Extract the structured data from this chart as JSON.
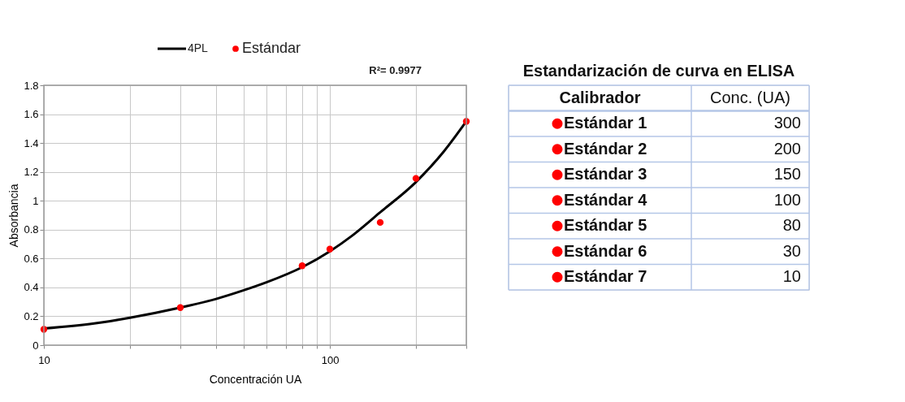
{
  "chart_data": [
    {
      "type": "scatter",
      "xlabel": "Concentración UA",
      "ylabel": "Absorbancia",
      "log": "x",
      "grid": true,
      "legend": "top",
      "xlim": [
        10,
        300
      ],
      "ylim": [
        0,
        1.8
      ],
      "xticks": [
        10,
        {
          "value": 20,
          "label": null
        },
        {
          "value": 30,
          "label": null
        },
        {
          "value": 40,
          "label": null
        },
        {
          "value": 50,
          "label": null
        },
        {
          "value": 60,
          "label": null
        },
        {
          "value": 70,
          "label": null
        },
        {
          "value": 80,
          "label": null
        },
        {
          "value": 90,
          "label": null
        },
        100,
        {
          "value": 200,
          "label": null
        },
        {
          "value": 300,
          "label": null
        }
      ],
      "yticks": [
        0,
        0.2,
        0.4,
        0.6,
        0.8,
        1,
        1.2,
        1.4,
        1.6,
        1.8
      ],
      "annotations": [
        "R²= 0.9977"
      ],
      "series": [
        {
          "name": "4PL",
          "type": "line",
          "color": "#000000",
          "x": [
            10,
            15,
            20,
            30,
            40,
            50,
            60,
            80,
            100,
            120,
            150,
            200,
            250,
            300
          ],
          "values": [
            0.115,
            0.15,
            0.19,
            0.26,
            0.32,
            0.38,
            0.435,
            0.54,
            0.65,
            0.76,
            0.92,
            1.13,
            1.34,
            1.55
          ]
        },
        {
          "name": "Estándar",
          "type": "scatter",
          "marker": "circle",
          "color": "#ff0000",
          "x": [
            10,
            30,
            80,
            100,
            150,
            200,
            300
          ],
          "values": [
            0.11,
            0.26,
            0.55,
            0.665,
            0.85,
            1.155,
            1.55
          ]
        }
      ]
    },
    {
      "type": "other",
      "title": "Estandarización de curva en ELISA",
      "annotations": [
        "Calibrador",
        "Conc. (UA)"
      ],
      "data_labels": true,
      "categories": [
        "Estándar 1",
        "Estándar 2",
        "Estándar 3",
        "Estándar 4",
        "Estándar 5",
        "Estándar 6",
        "Estándar 7"
      ],
      "series": [
        {
          "color": "#ff0000",
          "values": [
            300,
            200,
            150,
            100,
            80,
            30,
            10
          ]
        }
      ]
    }
  ]
}
